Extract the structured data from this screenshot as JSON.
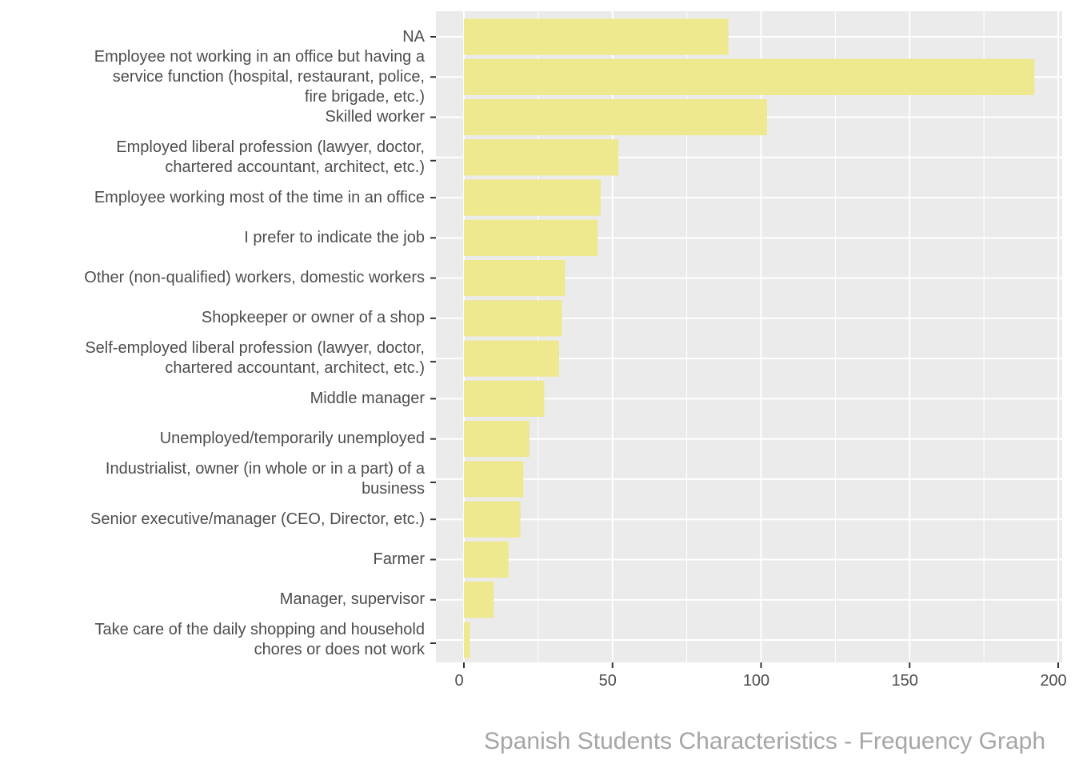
{
  "chart_data": {
    "type": "bar",
    "orientation": "horizontal",
    "title": "",
    "caption": "Spanish Students Characteristics - Frequency Graph",
    "xlabel": "",
    "ylabel": "",
    "xlim": [
      0,
      200
    ],
    "x_ticks": [
      0,
      50,
      100,
      150,
      200
    ],
    "x_tick_labels": [
      "0",
      "50",
      "100",
      "150",
      "200"
    ],
    "grid": true,
    "bar_color": "#EEE88E",
    "panel_color": "#EBEBEB",
    "categories": [
      "NA",
      "Employee not working in an office but having a\nservice function (hospital, restaurant, police,\nfire brigade, etc.)",
      "Skilled worker",
      "Employed liberal profession (lawyer, doctor,\nchartered accountant, architect, etc.)",
      "Employee working most of the time in an office",
      "I prefer to indicate the job",
      "Other (non-qualified) workers, domestic workers",
      "Shopkeeper or owner of a shop",
      "Self-employed liberal profession (lawyer, doctor,\nchartered accountant, architect, etc.)",
      "Middle manager",
      "Unemployed/temporarily unemployed",
      "Industrialist, owner (in whole or in a part) of a\nbusiness",
      "Senior executive/manager (CEO, Director, etc.)",
      "Farmer",
      "Manager, supervisor",
      "Take care of the daily shopping and household\nchores or does not work"
    ],
    "values": [
      89,
      192,
      102,
      52,
      46,
      45,
      34,
      33,
      32,
      27,
      22,
      20,
      19,
      15,
      10,
      2
    ]
  }
}
